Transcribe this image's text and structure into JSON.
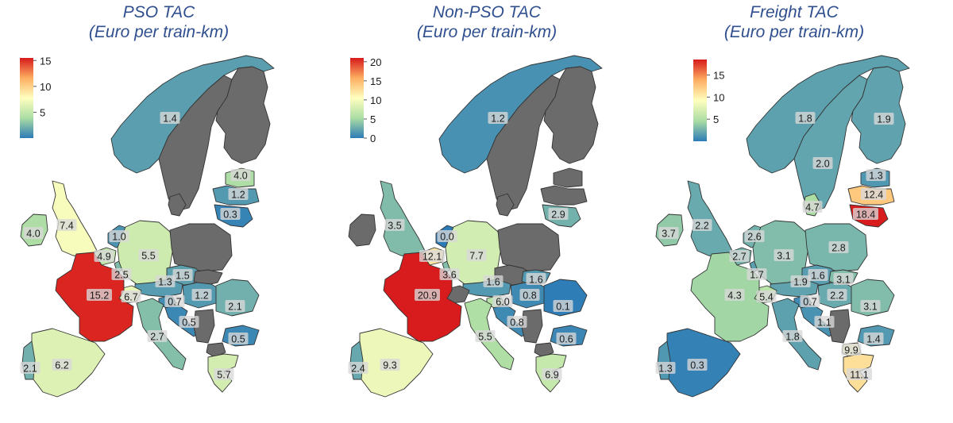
{
  "maps": [
    {
      "id": "pso",
      "title_line1": "PSO TAC",
      "title_line2": "(Euro per train-km)",
      "legend": {
        "min": 0,
        "max": 15.5,
        "ticks": [
          5,
          10,
          15
        ]
      },
      "labels": [
        {
          "region": "norway",
          "value": "1.4"
        },
        {
          "region": "estonia",
          "value": "4.0"
        },
        {
          "region": "latvia",
          "value": "1.2"
        },
        {
          "region": "lithuania",
          "value": "0.3"
        },
        {
          "region": "ireland",
          "value": "4.0"
        },
        {
          "region": "uk",
          "value": "7.4"
        },
        {
          "region": "netherlands",
          "value": "1.0"
        },
        {
          "region": "germany",
          "value": "5.5"
        },
        {
          "region": "belgium",
          "value": "4.9"
        },
        {
          "region": "luxembourg",
          "value": "2.5"
        },
        {
          "region": "france",
          "value": "15.2"
        },
        {
          "region": "switzerland",
          "value": "6.7"
        },
        {
          "region": "austria",
          "value": "1.3"
        },
        {
          "region": "czechia",
          "value": "1.5"
        },
        {
          "region": "slovenia",
          "value": "0.7"
        },
        {
          "region": "hungary",
          "value": "1.2"
        },
        {
          "region": "croatia",
          "value": "0.5"
        },
        {
          "region": "romania",
          "value": "2.1"
        },
        {
          "region": "bulgaria",
          "value": "0.5"
        },
        {
          "region": "italy",
          "value": "2.7"
        },
        {
          "region": "spain",
          "value": "6.2"
        },
        {
          "region": "portugal",
          "value": "2.1"
        },
        {
          "region": "greece",
          "value": "5.7"
        }
      ]
    },
    {
      "id": "nonpso",
      "title_line1": "Non-PSO TAC",
      "title_line2": "(Euro per train-km)",
      "legend": {
        "min": 0,
        "max": 21,
        "ticks": [
          0,
          5,
          10,
          15,
          20
        ]
      },
      "labels": [
        {
          "region": "norway",
          "value": "1.2"
        },
        {
          "region": "lithuania",
          "value": "2.9"
        },
        {
          "region": "uk",
          "value": "3.5"
        },
        {
          "region": "netherlands",
          "value": "0.0"
        },
        {
          "region": "belgium",
          "value": "12.1"
        },
        {
          "region": "luxembourg",
          "value": "3.6"
        },
        {
          "region": "germany",
          "value": "7.7"
        },
        {
          "region": "austria",
          "value": "1.6"
        },
        {
          "region": "slovakia",
          "value": "1.6"
        },
        {
          "region": "france",
          "value": "20.9"
        },
        {
          "region": "slovenia",
          "value": "6.0"
        },
        {
          "region": "hungary",
          "value": "0.8"
        },
        {
          "region": "romania",
          "value": "0.1"
        },
        {
          "region": "croatia",
          "value": "0.8"
        },
        {
          "region": "bulgaria",
          "value": "0.6"
        },
        {
          "region": "italy",
          "value": "5.5"
        },
        {
          "region": "portugal",
          "value": "2.4"
        },
        {
          "region": "spain",
          "value": "9.3"
        },
        {
          "region": "greece",
          "value": "6.9"
        }
      ]
    },
    {
      "id": "freight",
      "title_line1": "Freight TAC",
      "title_line2": "(Euro per train-km)",
      "legend": {
        "min": 0,
        "max": 18.5,
        "ticks": [
          5,
          10,
          15
        ]
      },
      "labels": [
        {
          "region": "norway",
          "value": "1.8"
        },
        {
          "region": "finland",
          "value": "1.9"
        },
        {
          "region": "sweden",
          "value": "2.0"
        },
        {
          "region": "estonia",
          "value": "1.3"
        },
        {
          "region": "latvia",
          "value": "12.4"
        },
        {
          "region": "lithuania",
          "value": "18.4"
        },
        {
          "region": "denmark",
          "value": "4.7"
        },
        {
          "region": "ireland",
          "value": "3.7"
        },
        {
          "region": "uk",
          "value": "2.2"
        },
        {
          "region": "netherlands",
          "value": "2.6"
        },
        {
          "region": "belgium",
          "value": "2.7"
        },
        {
          "region": "germany",
          "value": "3.1"
        },
        {
          "region": "poland",
          "value": "2.8"
        },
        {
          "region": "czechia",
          "value": "1.6"
        },
        {
          "region": "luxembourg",
          "value": "1.7"
        },
        {
          "region": "austria",
          "value": "1.9"
        },
        {
          "region": "slovakia",
          "value": "3.1"
        },
        {
          "region": "france",
          "value": "4.3"
        },
        {
          "region": "switzerland",
          "value": "5.4"
        },
        {
          "region": "slovenia",
          "value": "0.7"
        },
        {
          "region": "hungary",
          "value": "2.2"
        },
        {
          "region": "romania",
          "value": "3.1"
        },
        {
          "region": "croatia",
          "value": "1.1"
        },
        {
          "region": "bulgaria",
          "value": "1.4"
        },
        {
          "region": "italy",
          "value": "1.8"
        },
        {
          "region": "spain",
          "value": "0.3"
        },
        {
          "region": "portugal",
          "value": "1.3"
        },
        {
          "region": "macedonia",
          "value": "9.9"
        },
        {
          "region": "greece",
          "value": "11.1"
        }
      ]
    }
  ]
}
